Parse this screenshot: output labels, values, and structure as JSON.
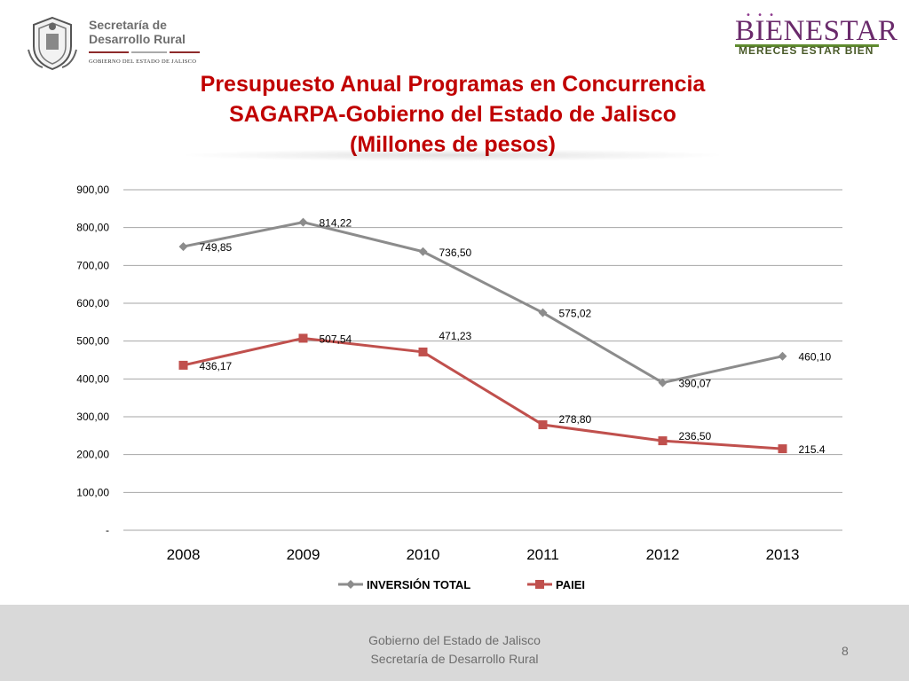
{
  "header": {
    "org_line1": "Secretaría de",
    "org_line2": "Desarrollo Rural",
    "org_subtitle": "GOBIERNO DEL ESTADO DE JALISCO",
    "brand_name": "BIENESTAR",
    "brand_slogan": "MERECES ESTAR BIEN",
    "colors": {
      "brand_purple": "#6a2a6b",
      "brand_green": "#5f8c2f"
    }
  },
  "title": {
    "line1": "Presupuesto Anual Programas en Concurrencia",
    "line2": "SAGARPA-Gobierno del Estado de Jalisco",
    "line3": "(Millones de pesos)"
  },
  "chart_data": {
    "type": "line",
    "x": [
      "2008",
      "2009",
      "2010",
      "2011",
      "2012",
      "2013"
    ],
    "series": [
      {
        "name": "INVERSIÓN TOTAL",
        "values": [
          749.85,
          814.22,
          736.5,
          575.02,
          390.07,
          460.1
        ],
        "labels": [
          "749,85",
          "814,22",
          "736,50",
          "575,02",
          "390,07",
          "460,10"
        ],
        "color": "#8c8c8c",
        "marker": "diamond"
      },
      {
        "name": "PAIEI",
        "values": [
          436.17,
          507.54,
          471.23,
          278.8,
          236.5,
          215.4
        ],
        "labels": [
          "436,17",
          "507,54",
          "471,23",
          "278,80",
          "236,50",
          "215.4"
        ],
        "color": "#c0504d",
        "marker": "square"
      }
    ],
    "ylim": [
      0,
      900
    ],
    "yticks": [
      0,
      100,
      200,
      300,
      400,
      500,
      600,
      700,
      800,
      900
    ],
    "ytick_labels": [
      "-",
      "100,00",
      "200,00",
      "300,00",
      "400,00",
      "500,00",
      "600,00",
      "700,00",
      "800,00",
      "900,00"
    ],
    "grid": true,
    "legend": "bottom-center"
  },
  "footer": {
    "line1": "Gobierno del Estado de Jalisco",
    "line2": "Secretaría de Desarrollo Rural",
    "page_number": "8"
  }
}
